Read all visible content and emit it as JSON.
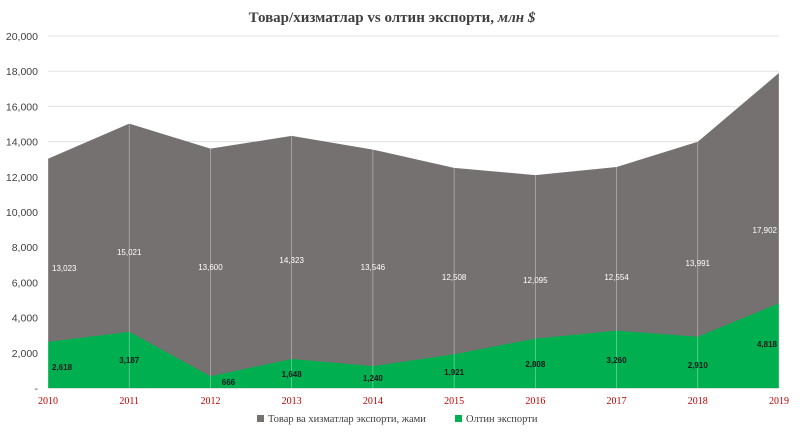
{
  "chart_data": {
    "type": "area",
    "title": "Товар/хизматлар vs олтин экспорти,",
    "title_unit": "млн $",
    "categories": [
      "2010",
      "2011",
      "2012",
      "2013",
      "2014",
      "2015",
      "2016",
      "2017",
      "2018",
      "2019"
    ],
    "series": [
      {
        "name": "Товар ва хизматлар экспорти, жами",
        "color": "#767171",
        "values": [
          13023,
          15021,
          13600,
          14323,
          13546,
          12508,
          12095,
          12554,
          13991,
          17902
        ],
        "labels": [
          "13,023",
          "15,021",
          "13,600",
          "14,323",
          "13,546",
          "12,508",
          "12,095",
          "12,554",
          "13,991",
          "17,902"
        ]
      },
      {
        "name": "Олтин экспорти",
        "color": "#00b050",
        "values": [
          2618,
          3187,
          666,
          1648,
          1240,
          1921,
          2808,
          3260,
          2910,
          4818
        ],
        "labels": [
          "2,618",
          "3,187",
          "666",
          "1,648",
          "1,240",
          "1,921",
          "2,808",
          "3,260",
          "2,910",
          "4,818"
        ]
      }
    ],
    "yticks": [
      "-",
      "2,000",
      "4,000",
      "6,000",
      "8,000",
      "10,000",
      "12,000",
      "14,000",
      "16,000",
      "18,000",
      "20,000"
    ],
    "ylim": [
      0,
      20000
    ],
    "grid": true,
    "legend_position": "bottom"
  }
}
